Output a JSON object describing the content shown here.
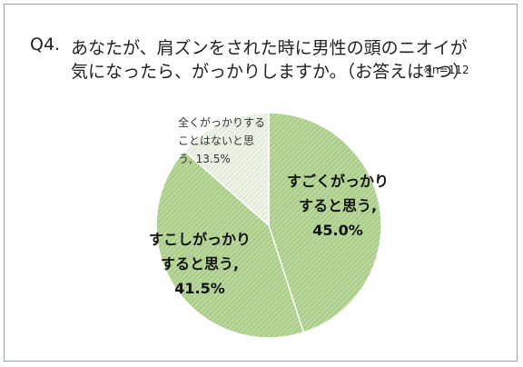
{
  "question": {
    "number": "Q4.",
    "line1": "あなたが、肩ズンをされた時に男性の頭のニオイが",
    "line2": "気になったら、がっかりしますか。（お答えは1つ）",
    "note": "※n=112"
  },
  "colors": {
    "slice_main": "#b9d79a",
    "slice_light": "#e8efe0",
    "hatch": "#7fa85f",
    "border": "#9aa9a0"
  },
  "chart_data": {
    "type": "pie",
    "title": "",
    "n": 112,
    "slices": [
      {
        "label": "すごくがっかりすると思う",
        "value": 45.0,
        "label_lines": [
          "すごくがっかり",
          "すると思う,",
          "45.0%"
        ]
      },
      {
        "label": "すこしがっかりすると思う",
        "value": 41.5,
        "label_lines": [
          "すこしがっかり",
          "すると思う,",
          "41.5%"
        ]
      },
      {
        "label": "全くがっかりすることはないと思う",
        "value": 13.5,
        "label_lines": [
          "全くがっかりする",
          "ことはないと思",
          "う, 13.5%"
        ]
      }
    ]
  }
}
